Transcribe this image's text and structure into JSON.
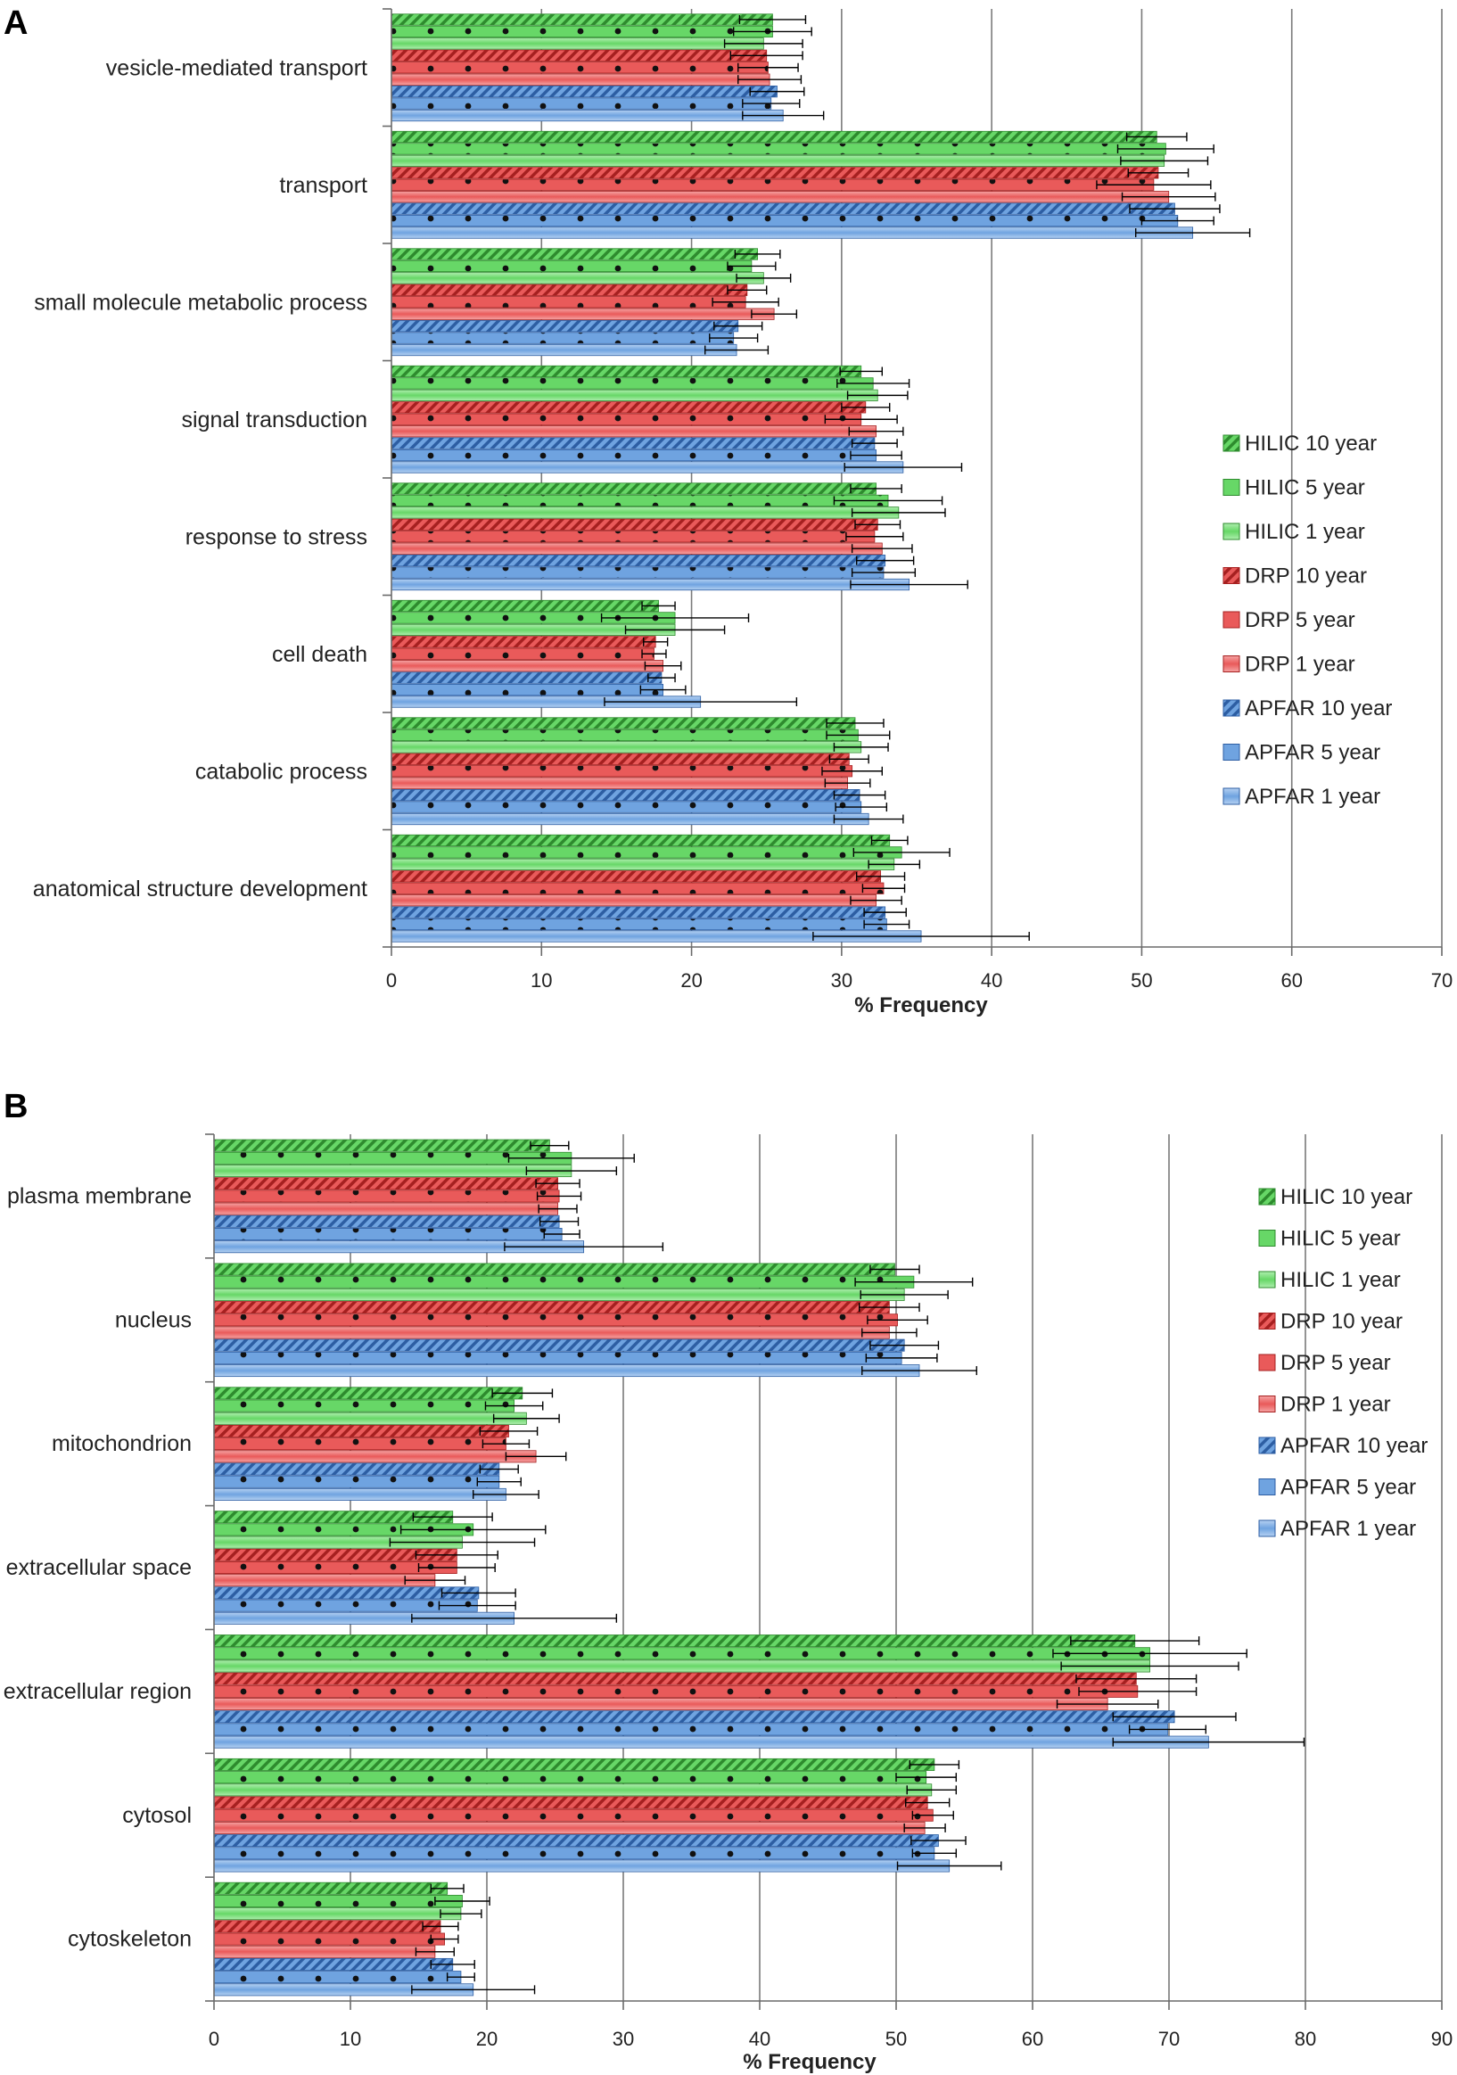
{
  "colors": {
    "HILIC": {
      "fill": "#67d767",
      "light": "#aeeeae",
      "stroke": "#2e8b2e"
    },
    "DRP": {
      "fill": "#e95a5a",
      "light": "#f5a3a3",
      "stroke": "#a62020"
    },
    "APFAR": {
      "fill": "#6fa3e0",
      "light": "#b5d1f2",
      "stroke": "#2d5ea3"
    }
  },
  "chart_data": [
    {
      "type": "bar",
      "orientation": "horizontal",
      "panel": "A",
      "xlabel": "% Frequency",
      "xlim": [
        0,
        70
      ],
      "xticks": [
        0,
        10,
        20,
        30,
        40,
        50,
        60,
        70
      ],
      "grid": "vertical",
      "legend_position": "right",
      "categories": [
        "vesicle-mediated transport",
        "transport",
        "small molecule metabolic process",
        "signal transduction",
        "response to stress",
        "cell death",
        "catabolic process",
        "anatomical structure development"
      ],
      "series": [
        {
          "name": "HILIC 10 year",
          "method": "HILIC",
          "pattern": "hatch",
          "values": [
            25.4,
            51.0,
            24.4,
            31.3,
            32.3,
            17.8,
            30.9,
            33.2
          ],
          "errors": [
            2.2,
            2.0,
            1.5,
            1.4,
            1.7,
            1.1,
            1.9,
            1.2
          ]
        },
        {
          "name": "HILIC 5 year",
          "method": "HILIC",
          "pattern": "dots",
          "values": [
            25.4,
            51.6,
            24.0,
            32.1,
            33.1,
            18.9,
            31.1,
            34.0
          ],
          "errors": [
            2.6,
            3.2,
            1.6,
            2.4,
            3.6,
            4.9,
            2.1,
            3.2
          ]
        },
        {
          "name": "HILIC 1 year",
          "method": "HILIC",
          "pattern": "solid",
          "values": [
            24.8,
            51.5,
            24.8,
            32.4,
            33.8,
            18.9,
            31.3,
            33.5
          ],
          "errors": [
            2.6,
            2.9,
            1.8,
            2.0,
            3.1,
            3.3,
            1.8,
            1.7
          ]
        },
        {
          "name": "DRP 10 year",
          "method": "DRP",
          "pattern": "hatch",
          "values": [
            25.0,
            51.1,
            23.7,
            31.6,
            32.4,
            17.6,
            30.5,
            32.6
          ],
          "errors": [
            2.4,
            2.0,
            1.3,
            1.6,
            1.5,
            0.8,
            1.3,
            1.6
          ]
        },
        {
          "name": "DRP 5 year",
          "method": "DRP",
          "pattern": "dots",
          "values": [
            25.1,
            50.8,
            23.6,
            31.3,
            32.2,
            17.5,
            30.7,
            32.8
          ],
          "errors": [
            2.0,
            3.8,
            2.2,
            2.4,
            1.9,
            0.8,
            2.0,
            1.4
          ]
        },
        {
          "name": "DRP 1 year",
          "method": "DRP",
          "pattern": "solid",
          "values": [
            25.2,
            51.8,
            25.5,
            32.3,
            32.7,
            18.1,
            30.4,
            32.3
          ],
          "errors": [
            2.1,
            3.1,
            1.5,
            1.8,
            2.0,
            1.2,
            1.5,
            1.7
          ]
        },
        {
          "name": "APFAR 10 year",
          "method": "APFAR",
          "pattern": "hatch",
          "values": [
            25.7,
            52.2,
            23.1,
            32.2,
            32.9,
            18.0,
            31.2,
            32.9
          ],
          "errors": [
            1.8,
            3.0,
            1.6,
            1.5,
            1.9,
            0.9,
            1.7,
            1.4
          ]
        },
        {
          "name": "APFAR 5 year",
          "method": "APFAR",
          "pattern": "dots",
          "values": [
            25.3,
            52.4,
            22.8,
            32.3,
            32.8,
            18.1,
            31.3,
            33.0
          ],
          "errors": [
            1.9,
            2.4,
            1.6,
            1.7,
            2.1,
            1.5,
            1.7,
            1.5
          ]
        },
        {
          "name": "APFAR 1 year",
          "method": "APFAR",
          "pattern": "solid",
          "values": [
            26.1,
            53.4,
            23.0,
            34.1,
            34.5,
            20.6,
            31.8,
            35.3
          ],
          "errors": [
            2.7,
            3.8,
            2.1,
            3.9,
            3.9,
            6.4,
            2.3,
            7.2
          ]
        }
      ]
    },
    {
      "type": "bar",
      "orientation": "horizontal",
      "panel": "B",
      "xlabel": "% Frequency",
      "xlim": [
        0,
        90
      ],
      "xticks": [
        0,
        10,
        20,
        30,
        40,
        50,
        60,
        70,
        80,
        90
      ],
      "grid": "vertical",
      "legend_position": "right",
      "categories": [
        "plasma membrane",
        "nucleus",
        "mitochondrion",
        "extracellular space",
        "extracellular region",
        "cytosol",
        "cytoskeleton"
      ],
      "series": [
        {
          "name": "HILIC 10 year",
          "method": "HILIC",
          "pattern": "hatch",
          "values": [
            24.6,
            49.9,
            22.6,
            17.5,
            67.5,
            52.8,
            17.1
          ],
          "errors": [
            1.4,
            1.8,
            2.2,
            2.9,
            4.7,
            1.8,
            1.2
          ]
        },
        {
          "name": "HILIC 5 year",
          "method": "HILIC",
          "pattern": "dots",
          "values": [
            26.2,
            51.3,
            22.0,
            19.0,
            68.6,
            52.2,
            18.2
          ],
          "errors": [
            4.6,
            4.3,
            2.1,
            5.3,
            7.1,
            2.2,
            2.0
          ]
        },
        {
          "name": "HILIC 1 year",
          "method": "HILIC",
          "pattern": "solid",
          "values": [
            26.2,
            50.6,
            22.9,
            18.2,
            68.6,
            52.6,
            18.1
          ],
          "errors": [
            3.3,
            3.2,
            2.4,
            5.3,
            6.5,
            1.8,
            1.5
          ]
        },
        {
          "name": "DRP 10 year",
          "method": "DRP",
          "pattern": "hatch",
          "values": [
            25.2,
            49.5,
            21.6,
            17.8,
            67.6,
            52.3,
            16.6
          ],
          "errors": [
            1.6,
            2.2,
            2.1,
            3.0,
            4.4,
            1.6,
            1.3
          ]
        },
        {
          "name": "DRP 5 year",
          "method": "DRP",
          "pattern": "dots",
          "values": [
            25.3,
            50.1,
            21.4,
            17.8,
            67.7,
            52.7,
            16.9
          ],
          "errors": [
            1.6,
            2.2,
            1.7,
            2.8,
            4.3,
            1.5,
            1.0
          ]
        },
        {
          "name": "DRP 1 year",
          "method": "DRP",
          "pattern": "solid",
          "values": [
            25.2,
            49.5,
            23.6,
            16.2,
            65.5,
            52.1,
            16.2
          ],
          "errors": [
            1.4,
            2.0,
            2.2,
            2.2,
            3.7,
            1.5,
            1.4
          ]
        },
        {
          "name": "APFAR 10 year",
          "method": "APFAR",
          "pattern": "hatch",
          "values": [
            25.3,
            50.6,
            20.9,
            19.4,
            70.4,
            53.1,
            17.5
          ],
          "errors": [
            1.4,
            2.5,
            1.4,
            2.7,
            4.5,
            2.0,
            1.6
          ]
        },
        {
          "name": "APFAR 5 year",
          "method": "APFAR",
          "pattern": "dots",
          "values": [
            25.5,
            50.4,
            20.9,
            19.3,
            69.9,
            52.8,
            18.1
          ],
          "errors": [
            1.3,
            2.6,
            1.6,
            2.8,
            2.8,
            1.6,
            1.0
          ]
        },
        {
          "name": "APFAR 1 year",
          "method": "APFAR",
          "pattern": "solid",
          "values": [
            27.1,
            51.7,
            21.4,
            22.0,
            72.9,
            53.9,
            19.0
          ],
          "errors": [
            5.8,
            4.2,
            2.4,
            7.5,
            7.0,
            3.8,
            4.5
          ]
        }
      ]
    }
  ]
}
